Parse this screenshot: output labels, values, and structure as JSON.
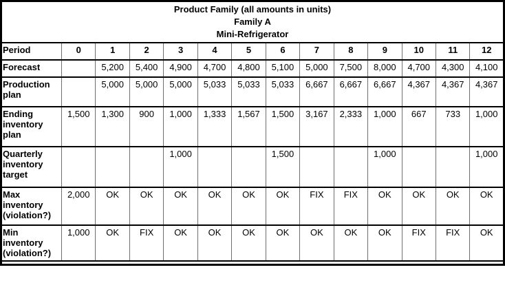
{
  "table": {
    "title_lines": [
      "Product Family (all amounts in units)",
      "Family A",
      "Mini-Refrigerator"
    ],
    "columns": [
      "Period",
      "0",
      "1",
      "2",
      "3",
      "4",
      "5",
      "6",
      "7",
      "8",
      "9",
      "10",
      "11",
      "12"
    ],
    "rows": [
      {
        "label": "Forecast",
        "values": [
          "",
          "5,200",
          "5,400",
          "4,900",
          "4,700",
          "4,800",
          "5,100",
          "5,000",
          "7,500",
          "8,000",
          "4,700",
          "4,300",
          "4,100"
        ]
      },
      {
        "label": "Production plan",
        "values": [
          "",
          "5,000",
          "5,000",
          "5,000",
          "5,033",
          "5,033",
          "5,033",
          "6,667",
          "6,667",
          "6,667",
          "4,367",
          "4,367",
          "4,367"
        ]
      },
      {
        "label": "Ending inventory plan",
        "values": [
          "1,500",
          "1,300",
          "900",
          "1,000",
          "1,333",
          "1,567",
          "1,500",
          "3,167",
          "2,333",
          "1,000",
          "667",
          "733",
          "1,000"
        ]
      },
      {
        "label": "Quarterly inventory target",
        "values": [
          "",
          "",
          "",
          "1,000",
          "",
          "",
          "1,500",
          "",
          "",
          "1,000",
          "",
          "",
          "1,000"
        ]
      },
      {
        "label": "Max inventory (violation?)",
        "values": [
          "2,000",
          "OK",
          "OK",
          "OK",
          "OK",
          "OK",
          "OK",
          "FIX",
          "FIX",
          "OK",
          "OK",
          "OK",
          "OK"
        ]
      },
      {
        "label": "Min inventory (violation?)",
        "values": [
          "1,000",
          "OK",
          "FIX",
          "OK",
          "OK",
          "OK",
          "OK",
          "OK",
          "OK",
          "OK",
          "FIX",
          "FIX",
          "OK"
        ]
      }
    ],
    "colors": {
      "header_bg": "#C9E0EF",
      "outer_border": "#000000",
      "inner_divider": "#6e6e6e",
      "cell_bg": "#ffffff"
    }
  }
}
